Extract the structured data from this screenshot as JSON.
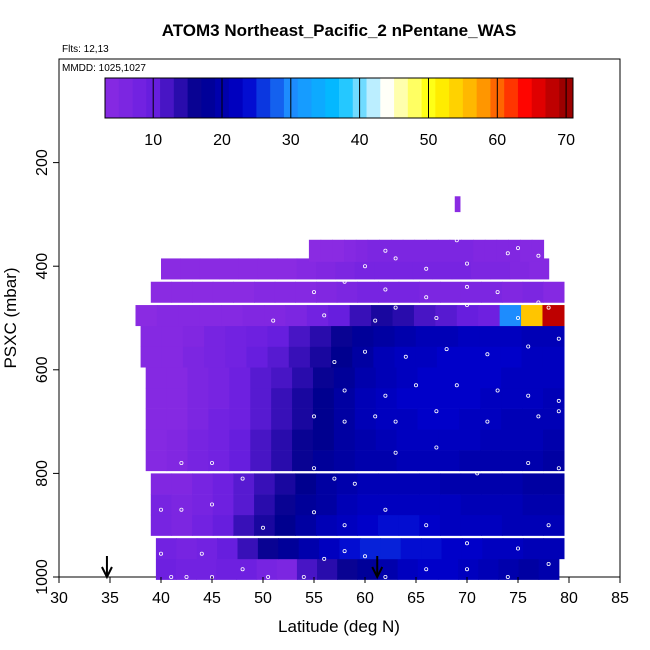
{
  "chart_data": {
    "type": "heatmap",
    "title": "ATOM3 Northeast_Pacific_2 nPentane_WAS",
    "flights_text": "Flts: 12,13",
    "mmdd_text": "MMDD: 1025,1027",
    "xlabel": "Latitude (deg N)",
    "ylabel": "PSXC (mbar)",
    "xlim": [
      30,
      85
    ],
    "ylim": [
      1000,
      0
    ],
    "x_ticks": [
      "30",
      "35",
      "40",
      "45",
      "50",
      "55",
      "60",
      "65",
      "70",
      "75",
      "80",
      "85"
    ],
    "y_ticks": [
      "200",
      "400",
      "600",
      "800",
      "1000"
    ],
    "colorbar": {
      "range": [
        3,
        71
      ],
      "tick_labels": [
        "10",
        "20",
        "30",
        "40",
        "50",
        "60",
        "70"
      ],
      "colors": [
        "#8a2be2",
        "#6a1fe0",
        "#00008b",
        "#0000cd",
        "#1e90ff",
        "#00bfff",
        "#ffffff",
        "#ffff00",
        "#ffa500",
        "#ff0000",
        "#8b0000"
      ]
    },
    "grid": false,
    "legend": "colorbar-top-inside",
    "arrows_lat": [
      34.7,
      61.2
    ],
    "cells": [
      {
        "p": 985,
        "lat0": 39.5,
        "lat1": 79.0,
        "vals": [
          9,
          8,
          8,
          9,
          9,
          7,
          6,
          12,
          14,
          16,
          18,
          20,
          22,
          23,
          23,
          22,
          21,
          20,
          19,
          20
        ]
      },
      {
        "p": 945,
        "lat0": 39.5,
        "lat1": 79.5,
        "vals": [
          8,
          7,
          8,
          10,
          13,
          16,
          18,
          20,
          22,
          24,
          25,
          25,
          24,
          24,
          23,
          23,
          22,
          22,
          21,
          21
        ]
      },
      {
        "p": 900,
        "lat0": 39.0,
        "lat1": 79.5,
        "vals": [
          7,
          6,
          8,
          10,
          13,
          15,
          17,
          19,
          21,
          22,
          23,
          24,
          24,
          23,
          22,
          22,
          22,
          21,
          21,
          21
        ]
      },
      {
        "p": 860,
        "lat0": 39.0,
        "lat1": 79.5,
        "vals": [
          7,
          6,
          7,
          9,
          11,
          14,
          16,
          18,
          19,
          21,
          22,
          22,
          22,
          22,
          22,
          21,
          21,
          21,
          20,
          20
        ]
      },
      {
        "p": 820,
        "lat0": 39.0,
        "lat1": 79.5,
        "vals": [
          5,
          5,
          7,
          9,
          11,
          13,
          15,
          17,
          19,
          20,
          21,
          21,
          21,
          21,
          20,
          20,
          20,
          20,
          19,
          19
        ]
      },
      {
        "p": 775,
        "lat0": 38.5,
        "lat1": 79.5,
        "vals": [
          4,
          5,
          7,
          8,
          10,
          12,
          14,
          16,
          18,
          19,
          20,
          20,
          21,
          21,
          21,
          20,
          20,
          20,
          20,
          19
        ]
      },
      {
        "p": 735,
        "lat0": 38.5,
        "lat1": 79.5,
        "vals": [
          4,
          5,
          7,
          8,
          10,
          12,
          14,
          16,
          17,
          19,
          20,
          21,
          22,
          22,
          22,
          22,
          21,
          21,
          21,
          20
        ]
      },
      {
        "p": 695,
        "lat0": 38.5,
        "lat1": 79.5,
        "vals": [
          4,
          4,
          6,
          8,
          9,
          11,
          13,
          15,
          17,
          19,
          21,
          22,
          22,
          23,
          23,
          22,
          22,
          21,
          21,
          21
        ]
      },
      {
        "p": 655,
        "lat0": 38.5,
        "lat1": 79.5,
        "vals": [
          4,
          4,
          6,
          7,
          9,
          11,
          13,
          15,
          17,
          19,
          21,
          22,
          23,
          23,
          23,
          23,
          22,
          22,
          22,
          21
        ]
      },
      {
        "p": 615,
        "lat0": 38.5,
        "lat1": 79.5,
        "vals": [
          4,
          4,
          6,
          7,
          9,
          11,
          12,
          14,
          16,
          18,
          20,
          21,
          22,
          23,
          23,
          23,
          23,
          22,
          22,
          22
        ]
      },
      {
        "p": 575,
        "lat0": 38.0,
        "lat1": 79.5,
        "vals": [
          4,
          4,
          6,
          7,
          8,
          10,
          11,
          13,
          15,
          17,
          19,
          21,
          22,
          22,
          23,
          23,
          23,
          23,
          22,
          22
        ]
      },
      {
        "p": 535,
        "lat0": 38.0,
        "lat1": 79.5,
        "vals": [
          4,
          4,
          5,
          7,
          8,
          9,
          10,
          12,
          14,
          16,
          18,
          19,
          20,
          21,
          21,
          22,
          22,
          22,
          21,
          21
        ]
      },
      {
        "p": 495,
        "lat0": 37.5,
        "lat1": 79.5,
        "vals": [
          3,
          4,
          4,
          4,
          4,
          5,
          5,
          6,
          8,
          10,
          13,
          15,
          14,
          12,
          11,
          10,
          9,
          30,
          55,
          68
        ]
      },
      {
        "p": 450,
        "lat0": 39.0,
        "lat1": 79.5,
        "vals": [
          3,
          3,
          3,
          3,
          3,
          4,
          4,
          4,
          5,
          6,
          7,
          7,
          7,
          6,
          6,
          6,
          6,
          5,
          6,
          4
        ]
      },
      {
        "p": 405,
        "lat0": 40.0,
        "lat1": 78.0,
        "vals": [
          3,
          3,
          3,
          3,
          3,
          3,
          3,
          4,
          5,
          6,
          7,
          7,
          7,
          7,
          7,
          7,
          6,
          6,
          5,
          4
        ]
      },
      {
        "p": 370,
        "lat0": 54.5,
        "lat1": 77.5,
        "vals": [
          3,
          3,
          3,
          4,
          5,
          6,
          6,
          6,
          6,
          6,
          6,
          6,
          6,
          6,
          5,
          5,
          5,
          5,
          4,
          4
        ]
      },
      {
        "p": 280,
        "lat0": 68.8,
        "lat1": 69.3,
        "vals": [
          3
        ]
      }
    ],
    "points": [
      [
        40,
        955
      ],
      [
        41,
        1000
      ],
      [
        42.5,
        1000
      ],
      [
        44,
        955
      ],
      [
        45,
        1000
      ],
      [
        48,
        985
      ],
      [
        50.5,
        1000
      ],
      [
        54,
        1000
      ],
      [
        56,
        965
      ],
      [
        58,
        950
      ],
      [
        60,
        960
      ],
      [
        62,
        1000
      ],
      [
        66,
        985
      ],
      [
        70,
        985
      ],
      [
        74,
        1000
      ],
      [
        78,
        975
      ],
      [
        40,
        870
      ],
      [
        42,
        870
      ],
      [
        45,
        860
      ],
      [
        50,
        905
      ],
      [
        55,
        875
      ],
      [
        58,
        900
      ],
      [
        62,
        870
      ],
      [
        66,
        900
      ],
      [
        70,
        935
      ],
      [
        75,
        945
      ],
      [
        78,
        900
      ],
      [
        42,
        780
      ],
      [
        45,
        780
      ],
      [
        48,
        810
      ],
      [
        55,
        790
      ],
      [
        57,
        810
      ],
      [
        59,
        820
      ],
      [
        63,
        760
      ],
      [
        67,
        750
      ],
      [
        71,
        800
      ],
      [
        76,
        780
      ],
      [
        79,
        790
      ],
      [
        55,
        690
      ],
      [
        58,
        700
      ],
      [
        61,
        690
      ],
      [
        63,
        700
      ],
      [
        67,
        680
      ],
      [
        72,
        700
      ],
      [
        77,
        690
      ],
      [
        79,
        680
      ],
      [
        58,
        640
      ],
      [
        62,
        650
      ],
      [
        65,
        630
      ],
      [
        69,
        630
      ],
      [
        73,
        640
      ],
      [
        76,
        650
      ],
      [
        79,
        660
      ],
      [
        57,
        585
      ],
      [
        60,
        565
      ],
      [
        64,
        575
      ],
      [
        68,
        560
      ],
      [
        72,
        570
      ],
      [
        76,
        555
      ],
      [
        79,
        540
      ],
      [
        51,
        505
      ],
      [
        56,
        495
      ],
      [
        61,
        505
      ],
      [
        63,
        480
      ],
      [
        67,
        500
      ],
      [
        70,
        475
      ],
      [
        75,
        500
      ],
      [
        78,
        480
      ],
      [
        55,
        450
      ],
      [
        58,
        430
      ],
      [
        62,
        445
      ],
      [
        66,
        460
      ],
      [
        70,
        440
      ],
      [
        73,
        450
      ],
      [
        77,
        470
      ],
      [
        60,
        400
      ],
      [
        63,
        385
      ],
      [
        66,
        405
      ],
      [
        70,
        395
      ],
      [
        74,
        375
      ],
      [
        77,
        380
      ],
      [
        79,
        380
      ],
      [
        62,
        370
      ],
      [
        69,
        350
      ],
      [
        75,
        365
      ],
      [
        78,
        360
      ]
    ]
  }
}
